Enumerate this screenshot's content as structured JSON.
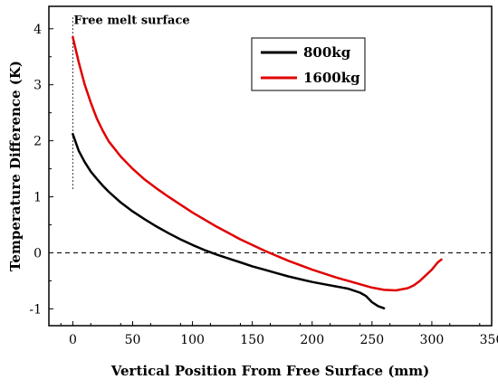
{
  "chart_data": {
    "type": "line",
    "title": "",
    "xlabel": "Vertical Position From Free Surface (mm)",
    "ylabel": "Temperature Difference (K)",
    "xlim": [
      -20,
      350
    ],
    "ylim": [
      -1.3,
      4.4
    ],
    "xticks": [
      0,
      50,
      100,
      150,
      200,
      250,
      300,
      350
    ],
    "yticks": [
      -1,
      0,
      1,
      2,
      3,
      4
    ],
    "grid": false,
    "legend_position": "top-right",
    "reference_line": {
      "y": 0,
      "style": "dashed"
    },
    "annotation": {
      "text": "Free melt surface",
      "x": 0,
      "y_range": [
        1.1,
        4.2
      ],
      "style": "dotted"
    },
    "series": [
      {
        "name": "800kg",
        "color": "#000000",
        "x": [
          0,
          5,
          10,
          15,
          20,
          25,
          30,
          40,
          50,
          60,
          70,
          80,
          90,
          100,
          110,
          120,
          130,
          140,
          150,
          160,
          170,
          180,
          190,
          200,
          210,
          220,
          230,
          240,
          245,
          250,
          255,
          260
        ],
        "y": [
          2.12,
          1.82,
          1.62,
          1.45,
          1.32,
          1.2,
          1.09,
          0.9,
          0.74,
          0.6,
          0.47,
          0.35,
          0.24,
          0.14,
          0.05,
          -0.03,
          -0.1,
          -0.17,
          -0.24,
          -0.3,
          -0.36,
          -0.42,
          -0.47,
          -0.52,
          -0.56,
          -0.6,
          -0.64,
          -0.71,
          -0.77,
          -0.88,
          -0.95,
          -0.99
        ]
      },
      {
        "name": "1600kg",
        "color": "#e00000",
        "x": [
          0,
          5,
          10,
          15,
          20,
          25,
          30,
          40,
          50,
          60,
          70,
          80,
          100,
          120,
          140,
          160,
          170,
          180,
          200,
          220,
          240,
          250,
          260,
          270,
          280,
          285,
          290,
          295,
          300,
          305,
          308
        ],
        "y": [
          3.85,
          3.4,
          3.0,
          2.68,
          2.4,
          2.18,
          1.99,
          1.72,
          1.5,
          1.31,
          1.15,
          1.0,
          0.72,
          0.47,
          0.24,
          0.04,
          -0.05,
          -0.14,
          -0.3,
          -0.44,
          -0.56,
          -0.62,
          -0.66,
          -0.67,
          -0.63,
          -0.58,
          -0.5,
          -0.4,
          -0.3,
          -0.17,
          -0.12
        ]
      }
    ]
  }
}
